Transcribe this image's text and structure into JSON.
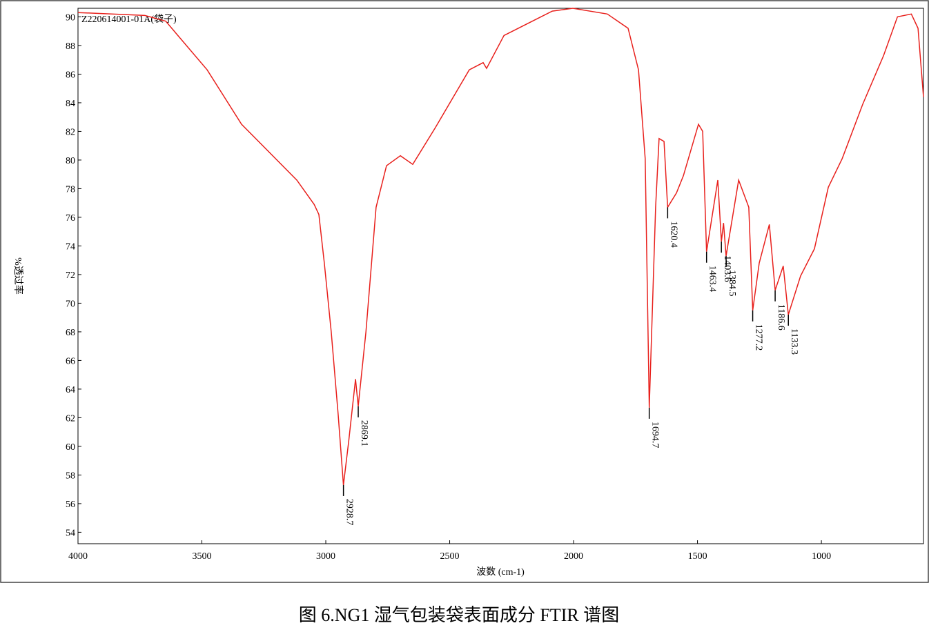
{
  "chart_data": {
    "type": "line",
    "xlabel": "波数 (cm-1)",
    "ylabel": "%透过率",
    "caption": "图 6.NG1 湿气包装袋表面成分 FTIR 谱图",
    "xlim": [
      4000,
      588
    ],
    "ylim": [
      53.2,
      90.6
    ],
    "xticks": [
      4000,
      3500,
      3000,
      2500,
      2000,
      1500,
      1000
    ],
    "yticks": [
      54,
      56,
      58,
      60,
      62,
      64,
      66,
      68,
      70,
      72,
      74,
      76,
      78,
      80,
      82,
      84,
      86,
      88,
      90
    ],
    "x": [
      4000,
      3730,
      3646,
      3479,
      3340,
      3117,
      3047,
      3028,
      3006,
      2978,
      2950,
      2928.7,
      2908,
      2880,
      2869.1,
      2838,
      2797,
      2755,
      2699,
      2649,
      2560,
      2421,
      2365,
      2351,
      2281,
      2086,
      2003,
      1864,
      1780,
      1738,
      1711,
      1694.7,
      1669,
      1655,
      1635,
      1620.4,
      1585,
      1557,
      1496,
      1479,
      1463.4,
      1418,
      1403.6,
      1395,
      1384.5,
      1334,
      1293,
      1277.2,
      1251,
      1210,
      1186.6,
      1154,
      1133.3,
      1084,
      1028,
      972,
      916,
      833,
      749,
      693,
      637,
      610,
      588
    ],
    "series": [
      {
        "name": "Z220614001-01A(袋子)",
        "color": "#e8201c",
        "values": [
          90.3,
          90.1,
          89.7,
          86.3,
          82.5,
          78.6,
          76.9,
          76.2,
          72.8,
          68.0,
          62.2,
          57.3,
          60.3,
          64.7,
          62.8,
          68.0,
          76.7,
          79.6,
          80.3,
          79.7,
          82.2,
          86.3,
          86.8,
          86.4,
          88.7,
          90.4,
          90.6,
          90.2,
          89.2,
          86.3,
          80.1,
          62.7,
          76.7,
          81.5,
          81.3,
          76.7,
          77.7,
          78.9,
          82.5,
          82.0,
          73.6,
          78.6,
          74.3,
          75.6,
          73.3,
          78.6,
          76.7,
          69.5,
          72.8,
          75.5,
          70.9,
          72.6,
          69.2,
          71.9,
          73.8,
          78.1,
          80.1,
          83.9,
          87.3,
          90.0,
          90.2,
          89.2,
          84.4
        ]
      }
    ],
    "annotations": [
      {
        "x": 2928.7,
        "y": 57.3
      },
      {
        "x": 2869.1,
        "y": 62.8
      },
      {
        "x": 1694.7,
        "y": 62.7
      },
      {
        "x": 1620.4,
        "y": 76.7
      },
      {
        "x": 1463.4,
        "y": 73.6
      },
      {
        "x": 1403.6,
        "y": 74.3
      },
      {
        "x": 1384.5,
        "y": 73.3
      },
      {
        "x": 1277.2,
        "y": 69.5
      },
      {
        "x": 1186.6,
        "y": 70.9
      },
      {
        "x": 1133.3,
        "y": 69.2
      }
    ]
  }
}
